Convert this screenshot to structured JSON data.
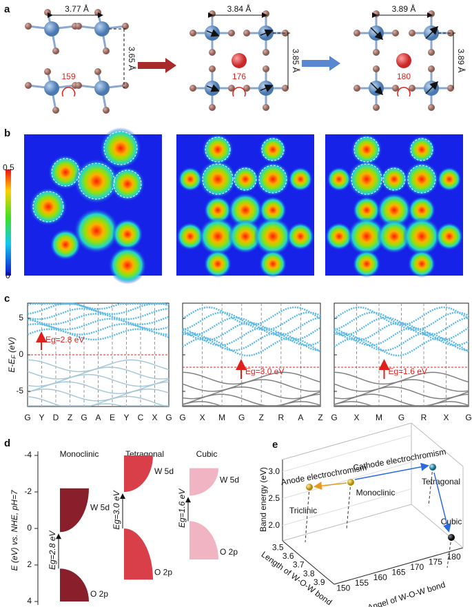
{
  "panel_labels": [
    "a",
    "b",
    "c",
    "d",
    "e"
  ],
  "a": {
    "structures": [
      {
        "width": "3.77 Å",
        "height": "3.65 Å",
        "angle": "159"
      },
      {
        "width": "3.84 Å",
        "height": "3.85 Å",
        "angle": "176"
      },
      {
        "width": "3.89 Å",
        "height": "3.89 Å",
        "angle": "180"
      }
    ]
  },
  "b": {
    "colorbar": {
      "max": "0.5",
      "min": "0"
    }
  },
  "c": {
    "y_label": {
      "main": "E-E",
      "sub": "F",
      "unit": " (eV)"
    },
    "yticks": [
      5,
      0,
      -5
    ],
    "plots": [
      {
        "kpoints": [
          "G",
          "Y",
          "D",
          "Z",
          "G",
          "A",
          "E",
          "Y",
          "C",
          "X",
          "G"
        ],
        "gap": "Eg=2.8 eV"
      },
      {
        "kpoints": [
          "G",
          "X",
          "M",
          "G",
          "Z",
          "R",
          "A",
          "Z"
        ],
        "gap": "Eg=3.0 eV"
      },
      {
        "kpoints": [
          "G",
          "X",
          "M",
          "G",
          "R",
          "X",
          "G"
        ],
        "gap": "Eg=1.6 eV"
      }
    ]
  },
  "d": {
    "y_label": "E (eV) vs. NHE, pH=7",
    "yticks": [
      -4,
      -2,
      0,
      2,
      4
    ],
    "phases": [
      {
        "name": "Monoclinic",
        "gap": "Eg=2.8 eV",
        "cb": "W 5d",
        "vb": "O 2p"
      },
      {
        "name": "Tetragonal",
        "gap": "Eg=3.0 eV",
        "cb": "W 5d",
        "vb": "O 2p"
      },
      {
        "name": "Cubic",
        "gap": "Eg=1.6 eV",
        "cb": "W 5d",
        "vb": "O 2p"
      }
    ]
  },
  "e": {
    "z_label": "Band energy (eV)",
    "zticks": [
      "3.0",
      "2.5",
      "2.0"
    ],
    "x_label": "Length of W-O-W bond",
    "xticks": [
      3.5,
      3.6,
      3.7,
      3.8,
      3.9
    ],
    "y_label": "Angel of W-O-W bond",
    "yticks": [
      150,
      155,
      160,
      165,
      170,
      175,
      180
    ],
    "points": [
      "Triclinic",
      "Monoclinic",
      "Tetragonal",
      "Cubic"
    ],
    "arrows": [
      "Anode electrochromism",
      "Cathode electrochromism"
    ]
  }
}
